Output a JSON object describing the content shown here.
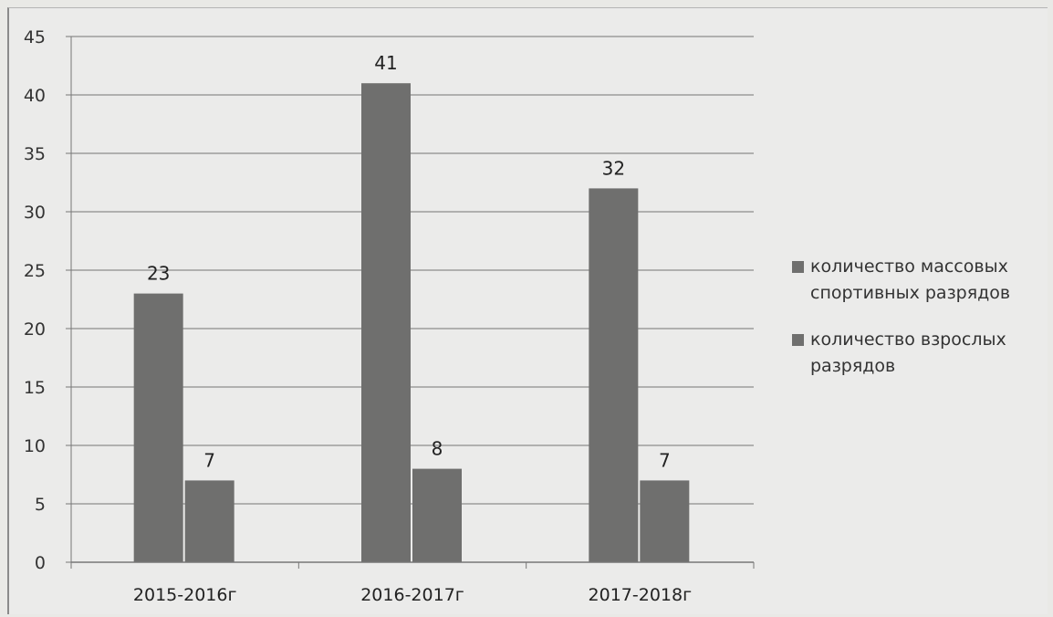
{
  "chart_data": {
    "type": "bar",
    "categories": [
      "2015-2016г",
      "2016-2017г",
      "2017-2018г"
    ],
    "series": [
      {
        "name": "количество массовых спортивных разрядов",
        "values": [
          23,
          41,
          32
        ],
        "color": "#6f6f6e"
      },
      {
        "name": "количество взрослых разрядов",
        "values": [
          7,
          8,
          7
        ],
        "color": "#6f6f6e"
      }
    ],
    "y_ticks": [
      0,
      5,
      10,
      15,
      20,
      25,
      30,
      35,
      40,
      45
    ],
    "ylim": [
      0,
      45
    ],
    "grid": true,
    "data_labels": true,
    "legend_position": "right"
  }
}
